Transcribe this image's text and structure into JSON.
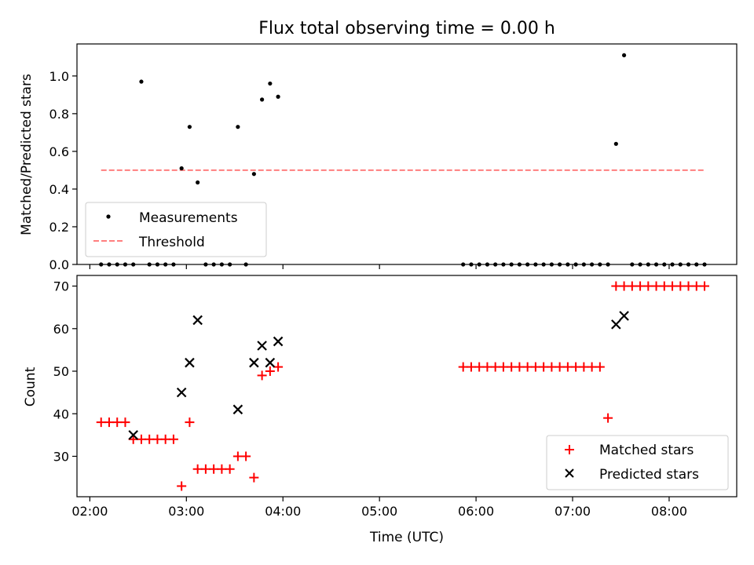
{
  "title": "Flux total observing time = 0.00 h",
  "xlabel": "Time (UTC)",
  "colors": {
    "measurement": "#000000",
    "threshold": "#ff7f7f",
    "matched": "#ff0000",
    "predicted": "#000000"
  },
  "chart_data": [
    {
      "type": "scatter",
      "ylabel": "Matched/Predicted stars",
      "ylim": [
        0,
        1.17
      ],
      "yticks": [
        0.0,
        0.2,
        0.4,
        0.6,
        0.8,
        1.0
      ],
      "grid": false,
      "legend_position": "lower-left",
      "series": [
        {
          "name": "Measurements",
          "x": [
            "02:07",
            "02:12",
            "02:17",
            "02:22",
            "02:27",
            "02:32",
            "02:37",
            "02:42",
            "02:47",
            "02:52",
            "02:57",
            "03:02",
            "03:07",
            "03:12",
            "03:17",
            "03:22",
            "03:27",
            "03:32",
            "03:37",
            "03:42",
            "03:47",
            "03:52",
            "03:57",
            "05:52",
            "05:57",
            "06:02",
            "06:07",
            "06:12",
            "06:17",
            "06:22",
            "06:27",
            "06:32",
            "06:37",
            "06:42",
            "06:47",
            "06:52",
            "06:57",
            "07:02",
            "07:07",
            "07:12",
            "07:17",
            "07:22",
            "07:27",
            "07:32",
            "07:37",
            "07:42",
            "07:47",
            "07:52",
            "07:57",
            "08:02",
            "08:07",
            "08:12",
            "08:17",
            "08:22"
          ],
          "y": [
            0,
            0,
            0,
            0,
            0,
            0.97,
            0,
            0,
            0,
            0,
            0.51,
            0.73,
            0.435,
            0,
            0,
            0,
            0,
            0.73,
            0,
            0.48,
            0.875,
            0.96,
            0.89,
            0,
            0,
            0,
            0,
            0,
            0,
            0,
            0,
            0,
            0,
            0,
            0,
            0,
            0,
            0,
            0,
            0,
            0,
            0,
            0.64,
            1.11,
            0,
            0,
            0,
            0,
            0,
            0,
            0,
            0,
            0,
            0
          ]
        },
        {
          "name": "Threshold",
          "x": [
            "02:07",
            "08:22"
          ],
          "y": [
            0.5,
            0.5
          ]
        }
      ]
    },
    {
      "type": "scatter",
      "ylabel": "Count",
      "ylim": [
        20.5,
        72.5
      ],
      "yticks": [
        30,
        40,
        50,
        60,
        70
      ],
      "xticks": [
        "02:00",
        "03:00",
        "04:00",
        "05:00",
        "06:00",
        "07:00",
        "08:00"
      ],
      "xlim": [
        "01:52",
        "08:42"
      ],
      "grid": false,
      "legend_position": "lower-right",
      "series": [
        {
          "name": "Matched stars",
          "x": [
            "02:07",
            "02:12",
            "02:17",
            "02:22",
            "02:27",
            "02:32",
            "02:37",
            "02:42",
            "02:47",
            "02:52",
            "02:57",
            "03:02",
            "03:07",
            "03:12",
            "03:17",
            "03:22",
            "03:27",
            "03:32",
            "03:37",
            "03:42",
            "03:47",
            "03:52",
            "03:57",
            "05:52",
            "05:57",
            "06:02",
            "06:07",
            "06:12",
            "06:17",
            "06:22",
            "06:27",
            "06:32",
            "06:37",
            "06:42",
            "06:47",
            "06:52",
            "06:57",
            "07:02",
            "07:07",
            "07:12",
            "07:17",
            "07:22",
            "07:27",
            "07:32",
            "07:37",
            "07:42",
            "07:47",
            "07:52",
            "07:57",
            "08:02",
            "08:07",
            "08:12",
            "08:17",
            "08:22"
          ],
          "y": [
            38,
            38,
            38,
            38,
            34,
            34,
            34,
            34,
            34,
            34,
            23,
            38,
            27,
            27,
            27,
            27,
            27,
            30,
            30,
            25,
            49,
            50,
            51,
            51,
            51,
            51,
            51,
            51,
            51,
            51,
            51,
            51,
            51,
            51,
            51,
            51,
            51,
            51,
            51,
            51,
            51,
            39,
            70,
            70,
            70,
            70,
            70,
            70,
            70,
            70,
            70,
            70,
            70,
            70
          ]
        },
        {
          "name": "Predicted stars",
          "x": [
            "02:27",
            "02:57",
            "03:02",
            "03:07",
            "03:32",
            "03:42",
            "03:47",
            "03:52",
            "03:57",
            "07:27",
            "07:32"
          ],
          "y": [
            35,
            45,
            52,
            62,
            41,
            52,
            56,
            52,
            57,
            61,
            63
          ]
        }
      ]
    }
  ]
}
